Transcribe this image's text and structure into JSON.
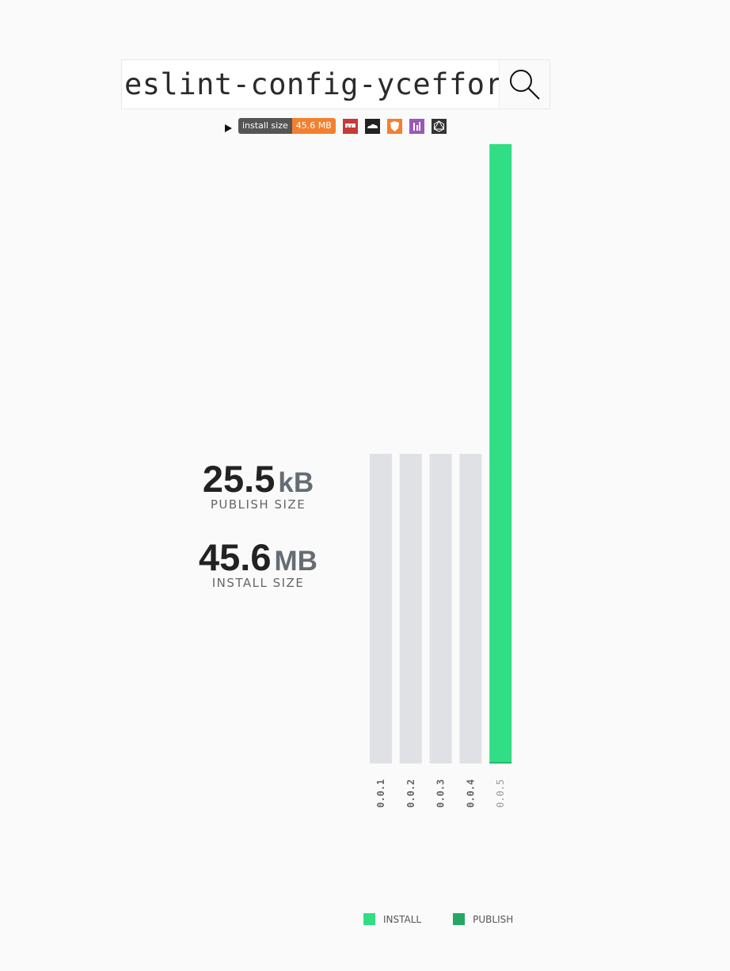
{
  "search": {
    "value": "eslint-config-yceffort",
    "icon": "search-icon"
  },
  "badges": {
    "label": "install size",
    "value": "45.6 MB",
    "icons": [
      {
        "name": "npm-icon",
        "color": "#cb3837"
      },
      {
        "name": "cloudflare-icon",
        "color": "#222222"
      },
      {
        "name": "shield-icon",
        "color": "#f3802f"
      },
      {
        "name": "chart-icon",
        "color": "#9b59b6"
      },
      {
        "name": "graphql-icon",
        "color": "#333333"
      }
    ]
  },
  "publish": {
    "value": "25.5",
    "unit": "kB",
    "label": "PUBLISH SIZE"
  },
  "install": {
    "value": "45.6",
    "unit": "MB",
    "label": "INSTALL SIZE"
  },
  "legend": {
    "install": "INSTALL",
    "publish": "PUBLISH"
  },
  "colors": {
    "install": "#31de85",
    "publish": "#25a764",
    "inactive": "#e0e1e4"
  },
  "chart_data": {
    "type": "bar",
    "categories": [
      "0.0.1",
      "0.0.2",
      "0.0.3",
      "0.0.4",
      "0.0.5"
    ],
    "series": [
      {
        "name": "INSTALL",
        "unit": "MB",
        "values": [
          22.8,
          22.8,
          22.8,
          22.8,
          45.6
        ]
      },
      {
        "name": "PUBLISH",
        "unit": "MB",
        "values": [
          0.025,
          0.025,
          0.025,
          0.025,
          0.0255
        ]
      }
    ],
    "selected": "0.0.5",
    "ylim": [
      0,
      45.6
    ],
    "grid": false,
    "legend": "bottom"
  }
}
